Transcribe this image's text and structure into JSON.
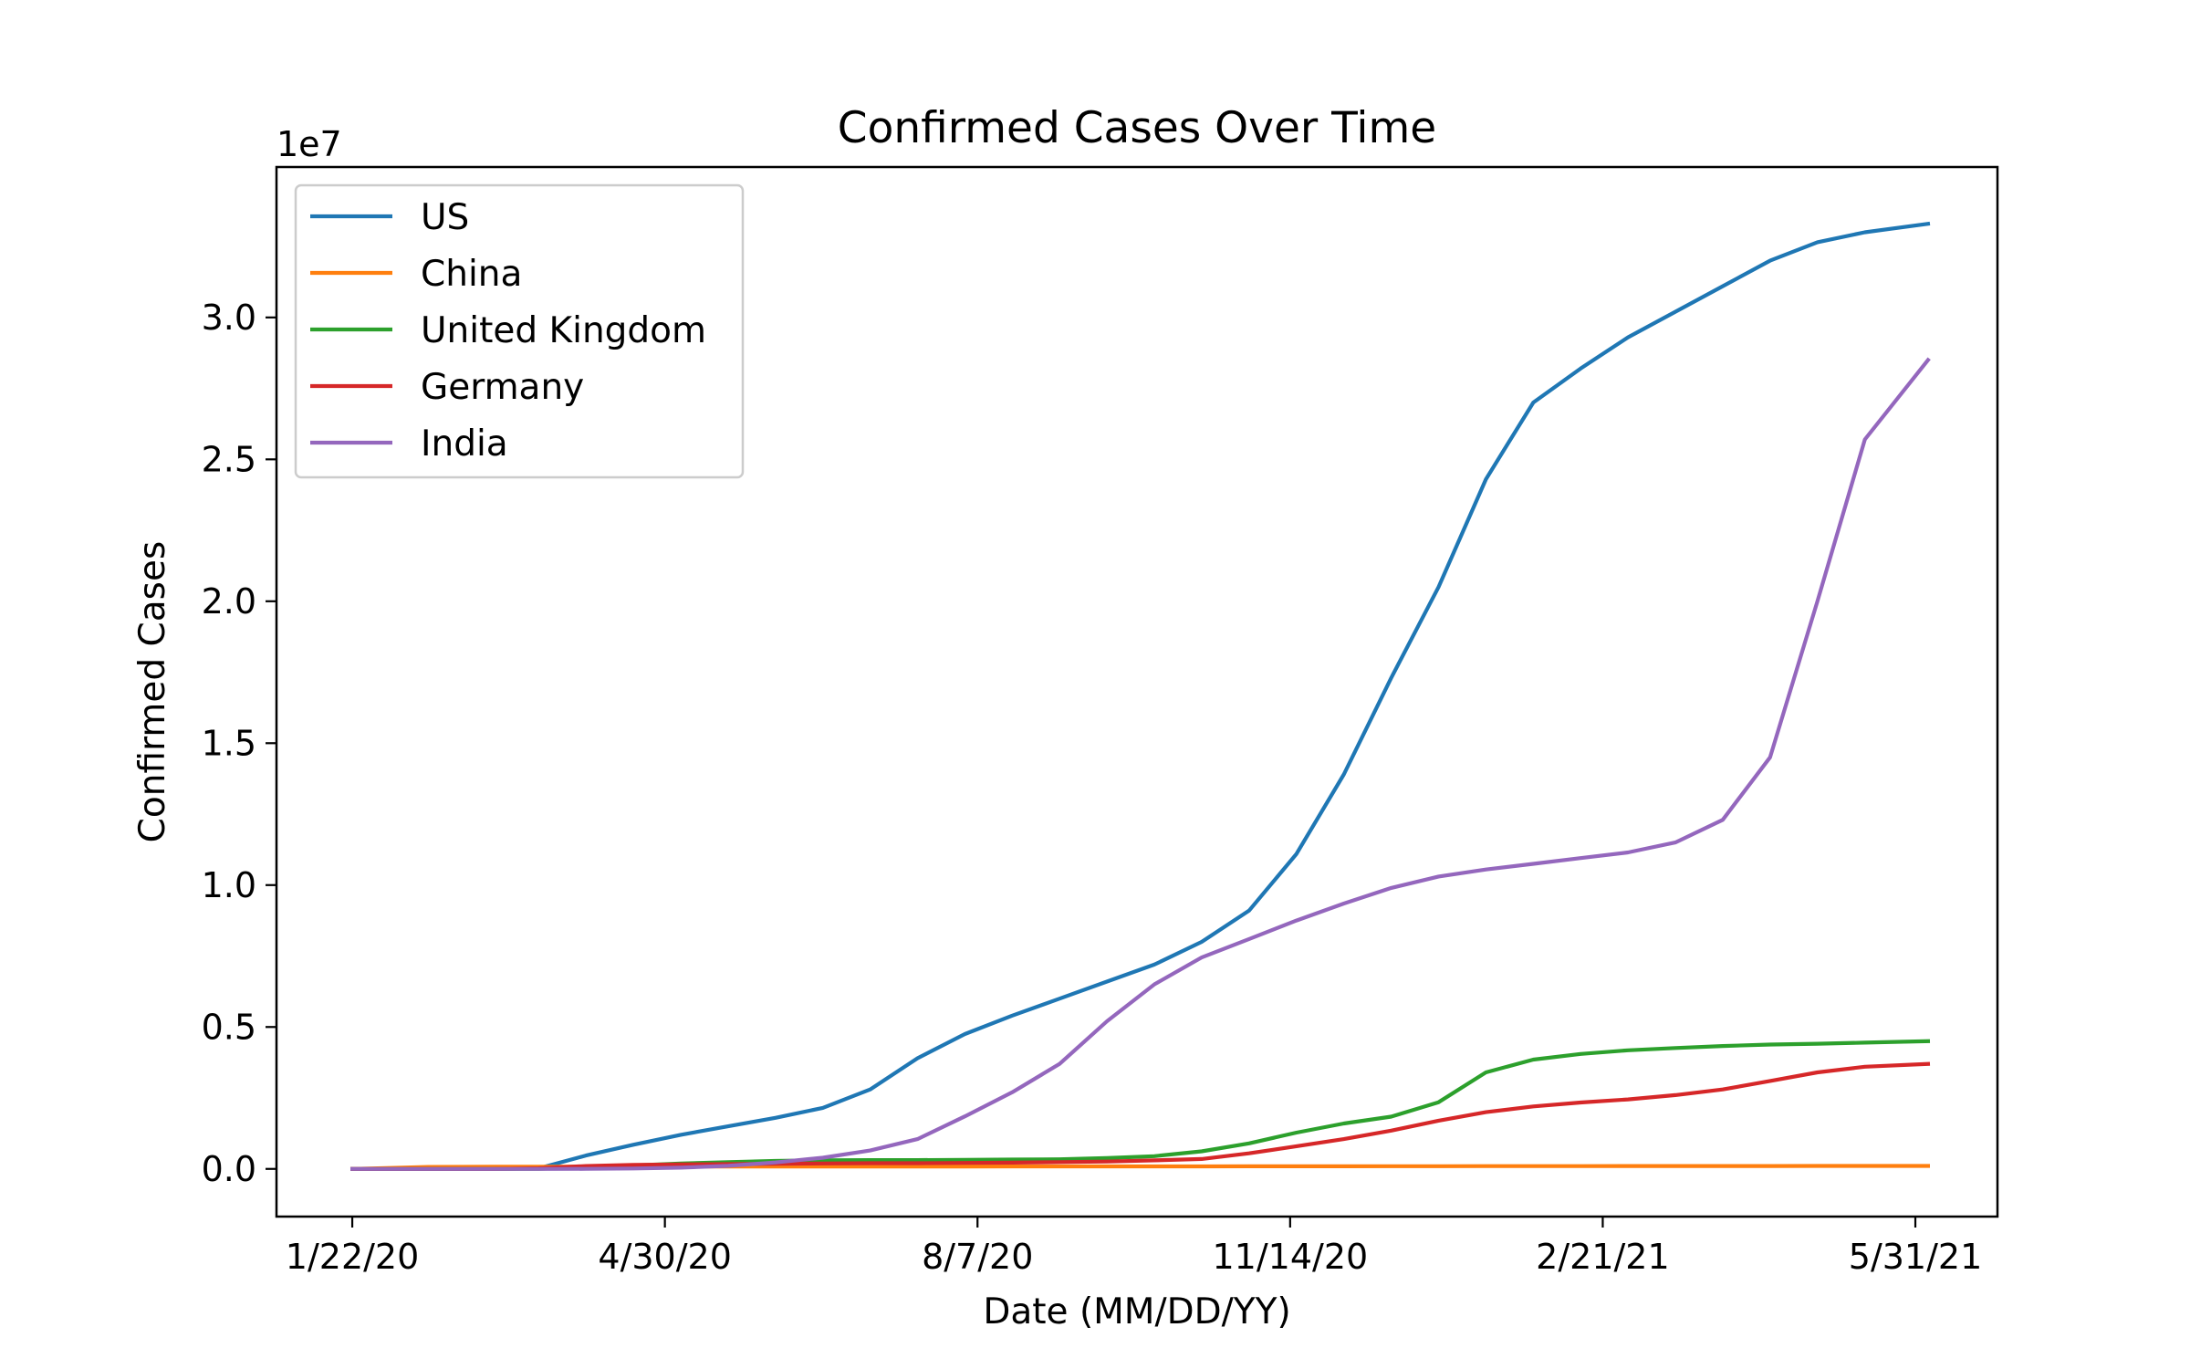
{
  "chart_data": {
    "type": "line",
    "title": "Confirmed Cases Over Time",
    "xlabel": "Date (MM/DD/YY)",
    "ylabel": "Confirmed Cases",
    "y_offset_label": "1e7",
    "x_tick_labels": [
      "1/22/20",
      "4/30/20",
      "8/7/20",
      "11/14/20",
      "2/21/21",
      "5/31/21"
    ],
    "x_ticks": [
      "2020-01-22",
      "2020-04-30",
      "2020-08-07",
      "2020-11-14",
      "2021-02-21",
      "2021-05-31"
    ],
    "xlim": [
      "2019-12-29",
      "2021-06-26"
    ],
    "y_tick_labels": [
      "0.0",
      "0.5",
      "1.0",
      "1.5",
      "2.0",
      "2.5",
      "3.0"
    ],
    "y_ticks": [
      0,
      0.5,
      1.0,
      1.5,
      2.0,
      2.5,
      3.0
    ],
    "ylim": [
      -0.168,
      3.53
    ],
    "y_unit_multiplier": 10000000,
    "grid": false,
    "legend_position": "upper left",
    "x": [
      "2020-01-22",
      "2020-02-15",
      "2020-03-07",
      "2020-03-21",
      "2020-04-05",
      "2020-04-20",
      "2020-05-05",
      "2020-05-20",
      "2020-06-04",
      "2020-06-19",
      "2020-07-04",
      "2020-07-19",
      "2020-08-03",
      "2020-08-18",
      "2020-09-02",
      "2020-09-17",
      "2020-10-02",
      "2020-10-17",
      "2020-11-01",
      "2020-11-16",
      "2020-12-01",
      "2020-12-16",
      "2020-12-31",
      "2021-01-15",
      "2021-01-30",
      "2021-02-14",
      "2021-03-01",
      "2021-03-16",
      "2021-03-31",
      "2021-04-15",
      "2021-04-30",
      "2021-05-15",
      "2021-06-04"
    ],
    "series": [
      {
        "name": "US",
        "color": "#1f77b4",
        "values": [
          0.0,
          0.0,
          0.0005,
          0.0018,
          0.047,
          0.085,
          0.12,
          0.15,
          0.18,
          0.215,
          0.28,
          0.39,
          0.475,
          0.54,
          0.6,
          0.66,
          0.72,
          0.8,
          0.91,
          1.11,
          1.39,
          1.73,
          2.05,
          2.43,
          2.7,
          2.82,
          2.93,
          3.02,
          3.11,
          3.2,
          3.265,
          3.3,
          3.33
        ]
      },
      {
        "name": "China",
        "color": "#ff7f0e",
        "values": [
          0.0,
          0.007,
          0.008,
          0.008,
          0.0082,
          0.0083,
          0.0083,
          0.0084,
          0.0084,
          0.0085,
          0.0085,
          0.0086,
          0.0087,
          0.0088,
          0.0088,
          0.0089,
          0.009,
          0.009,
          0.0091,
          0.0092,
          0.0093,
          0.0094,
          0.0096,
          0.0097,
          0.0098,
          0.0099,
          0.01,
          0.0101,
          0.0102,
          0.0103,
          0.0104,
          0.0105,
          0.0106
        ]
      },
      {
        "name": "United Kingdom",
        "color": "#2ca02c",
        "values": [
          0.0,
          0.0,
          0.0,
          0.0005,
          0.005,
          0.012,
          0.019,
          0.024,
          0.028,
          0.03,
          0.031,
          0.031,
          0.032,
          0.033,
          0.034,
          0.038,
          0.045,
          0.062,
          0.09,
          0.128,
          0.16,
          0.184,
          0.235,
          0.34,
          0.385,
          0.405,
          0.418,
          0.426,
          0.433,
          0.438,
          0.441,
          0.445,
          0.45
        ]
      },
      {
        "name": "Germany",
        "color": "#d62728",
        "values": [
          0.0,
          0.0,
          0.0,
          0.002,
          0.01,
          0.014,
          0.016,
          0.017,
          0.018,
          0.019,
          0.02,
          0.02,
          0.021,
          0.022,
          0.024,
          0.026,
          0.03,
          0.035,
          0.055,
          0.08,
          0.105,
          0.135,
          0.17,
          0.2,
          0.22,
          0.234,
          0.245,
          0.26,
          0.28,
          0.31,
          0.34,
          0.36,
          0.37
        ]
      },
      {
        "name": "India",
        "color": "#9467bd",
        "values": [
          0.0,
          0.0,
          0.0,
          0.0,
          0.0003,
          0.0015,
          0.0045,
          0.0108,
          0.0226,
          0.0395,
          0.0648,
          0.105,
          0.185,
          0.27,
          0.37,
          0.52,
          0.65,
          0.745,
          0.81,
          0.875,
          0.935,
          0.99,
          1.03,
          1.055,
          1.075,
          1.095,
          1.115,
          1.15,
          1.23,
          1.45,
          2.0,
          2.57,
          2.85
        ]
      }
    ]
  }
}
